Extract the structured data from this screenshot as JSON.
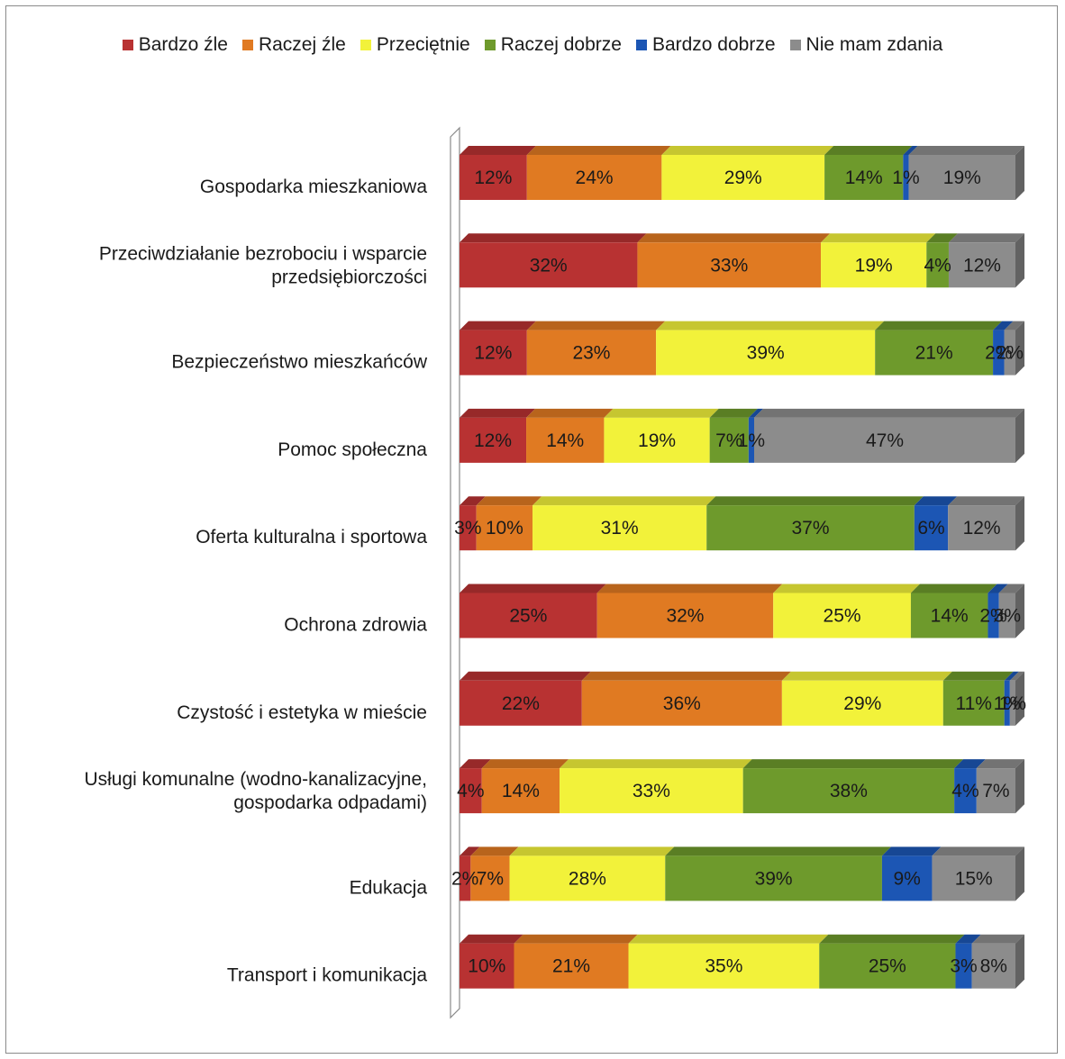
{
  "chart_data": {
    "type": "bar",
    "orientation": "horizontal",
    "stacked": true,
    "percent_stacked": true,
    "legend_position": "top",
    "grid": false,
    "categories": [
      "Gospodarka mieszkaniowa",
      "Przeciwdziałanie bezrobociu i wsparcie przedsiębiorczości",
      "Bezpieczeństwo mieszkańców",
      "Pomoc społeczna",
      "Oferta kulturalna i sportowa",
      "Ochrona zdrowia",
      "Czystość i estetyka w mieście",
      "Usługi komunalne (wodno-kanalizacyjne, gospodarka odpadami)",
      "Edukacja",
      "Transport i komunikacja"
    ],
    "category_lines": [
      [
        "Gospodarka mieszkaniowa"
      ],
      [
        "Przeciwdziałanie bezrobociu i wsparcie",
        "przedsiębiorczości"
      ],
      [
        "Bezpieczeństwo mieszkańców"
      ],
      [
        "Pomoc społeczna"
      ],
      [
        "Oferta kulturalna i sportowa"
      ],
      [
        "Ochrona zdrowia"
      ],
      [
        "Czystość i estetyka w mieście"
      ],
      [
        "Usługi komunalne (wodno-kanalizacyjne,",
        "gospodarka odpadami)"
      ],
      [
        "Edukacja"
      ],
      [
        "Transport i komunikacja"
      ]
    ],
    "series": [
      {
        "name": "Bardzo źle",
        "color": "#b83232",
        "values": [
          12,
          32,
          12,
          12,
          3,
          25,
          22,
          4,
          2,
          10
        ]
      },
      {
        "name": "Raczej źle",
        "color": "#e07a22",
        "values": [
          24,
          33,
          23,
          14,
          10,
          32,
          36,
          14,
          7,
          21
        ]
      },
      {
        "name": "Przeciętnie",
        "color": "#f2f23a",
        "values": [
          29,
          19,
          39,
          19,
          31,
          25,
          29,
          33,
          28,
          35
        ]
      },
      {
        "name": "Raczej dobrze",
        "color": "#6e9a2c",
        "values": [
          14,
          4,
          21,
          7,
          37,
          14,
          11,
          38,
          39,
          25
        ]
      },
      {
        "name": "Bardzo dobrze",
        "color": "#1c56b4",
        "values": [
          1,
          0,
          2,
          1,
          6,
          2,
          1,
          4,
          9,
          3
        ]
      },
      {
        "name": "Nie mam zdania",
        "color": "#8c8c8c",
        "values": [
          19,
          12,
          2,
          47,
          12,
          3,
          1,
          7,
          15,
          8
        ]
      }
    ],
    "segment_labels": [
      [
        "12%",
        "24%",
        "29%",
        "14%",
        "1%",
        "19%"
      ],
      [
        "32%",
        "33%",
        "19%",
        "4%",
        "",
        "12%"
      ],
      [
        "12%",
        "23%",
        "39%",
        "21%",
        "2%",
        "2%"
      ],
      [
        "12%",
        "14%",
        "19%",
        "7%",
        "1%",
        "47%"
      ],
      [
        "3%",
        "10%",
        "31%",
        "37%",
        "6%",
        "12%"
      ],
      [
        "25%",
        "32%",
        "25%",
        "14%",
        "2%",
        "3%"
      ],
      [
        "22%",
        "36%",
        "29%",
        "11%",
        "1%",
        "1%"
      ],
      [
        "4%",
        "14%",
        "33%",
        "38%",
        "4%",
        "7%"
      ],
      [
        "2%",
        "7%",
        "28%",
        "39%",
        "9%",
        "15%"
      ],
      [
        "10%",
        "21%",
        "35%",
        "25%",
        "3%",
        "8%"
      ]
    ]
  }
}
